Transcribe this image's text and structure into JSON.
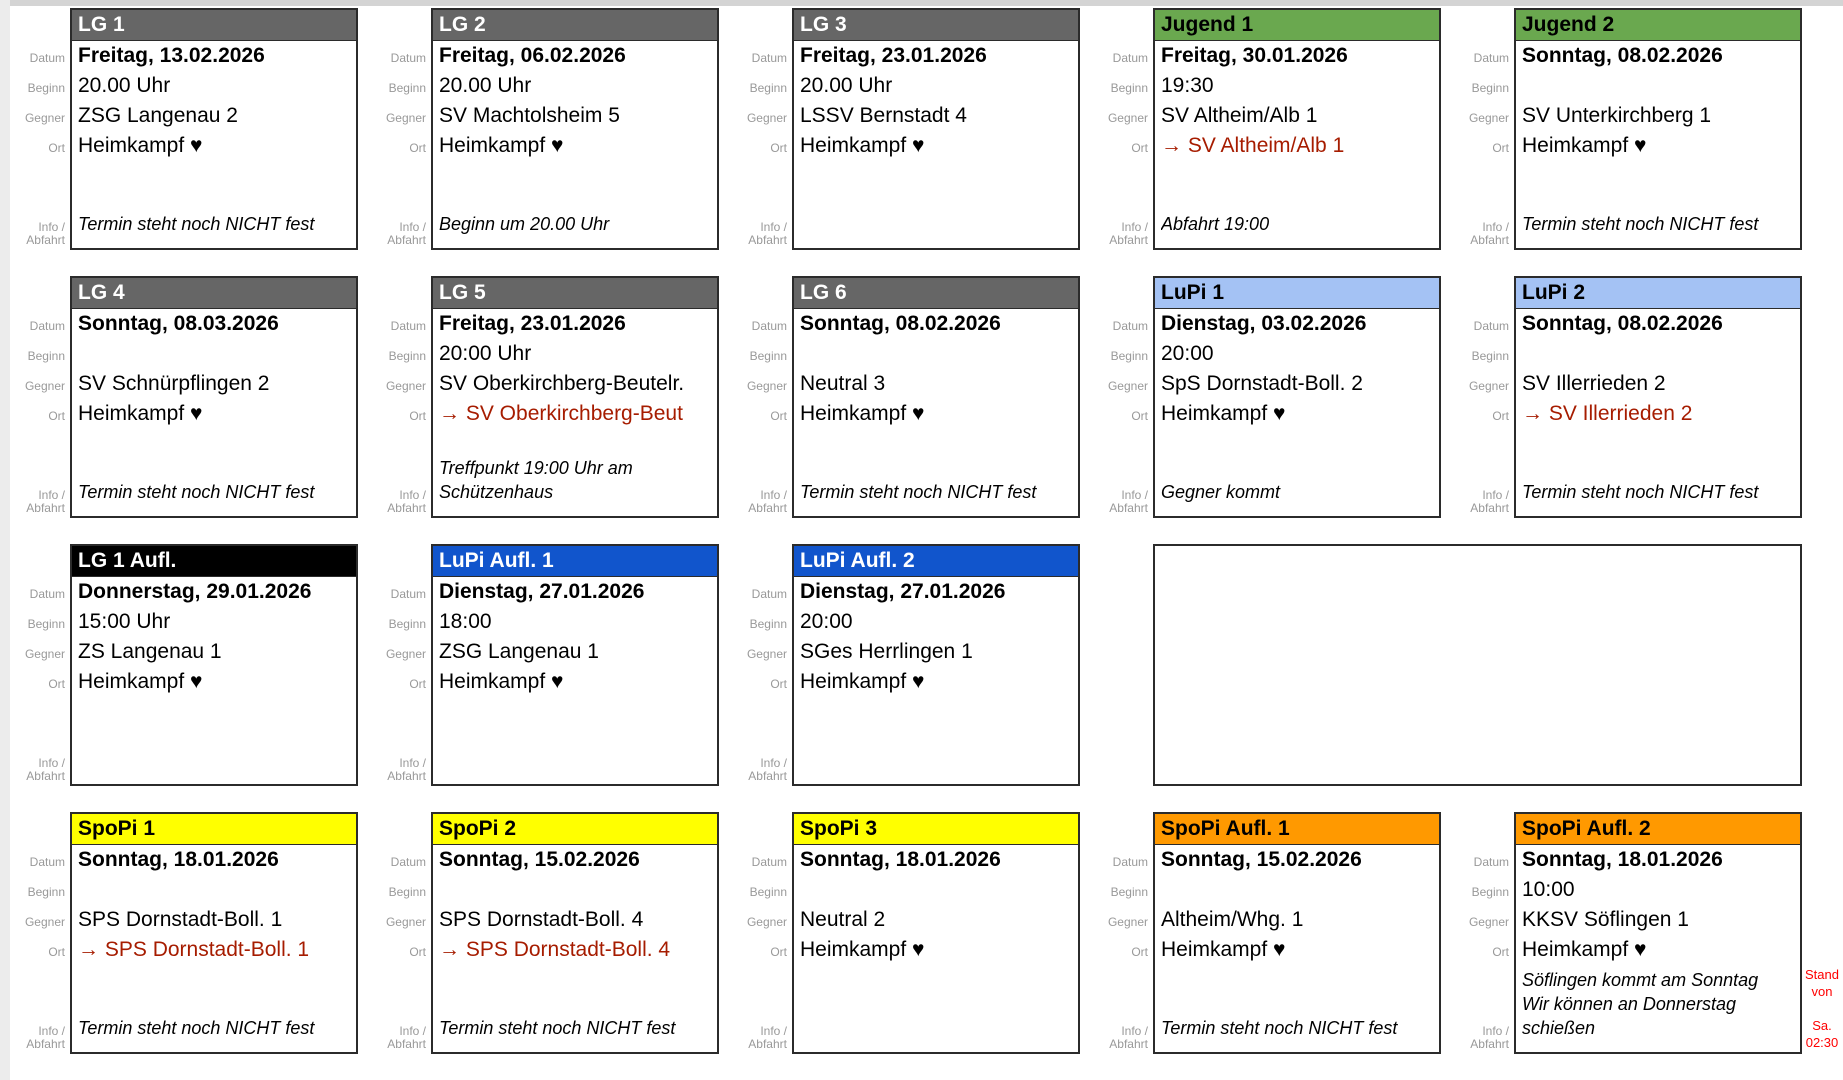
{
  "field_labels": {
    "datum": "Datum",
    "beginn": "Beginn",
    "gegner": "Gegner",
    "ort": "Ort",
    "info_line1": "Info /",
    "info_line2": "Abfahrt"
  },
  "side_note": {
    "text": "Stand\nvon\n\nSa.\n02:30",
    "color": "#ff0000"
  },
  "colors": {
    "away_match_red": "#a61c00",
    "card_border": "#2b2b2b",
    "label_gray": "#999999",
    "header_gray": "#666666",
    "header_green": "#6aa84f",
    "header_lightblue": "#a4c2f4",
    "header_black": "#000000",
    "header_blue": "#1155cc",
    "header_yellow": "#ffff00",
    "header_orange": "#ff9900"
  },
  "rows": [
    {
      "cards": [
        {
          "title": "LG 1",
          "header_bg": "#666666",
          "header_fg": "#ffffff",
          "datum": "Freitag, 13.02.2026",
          "beginn": "20.00 Uhr",
          "gegner": "ZSG Langenau 2",
          "ort": "Heimkampf ♥",
          "ort_red": false,
          "info": "Termin steht noch NICHT fest"
        },
        {
          "title": "LG 2",
          "header_bg": "#666666",
          "header_fg": "#ffffff",
          "datum": "Freitag, 06.02.2026",
          "beginn": "20.00 Uhr",
          "gegner": "SV Machtolsheim 5",
          "ort": "Heimkampf ♥",
          "ort_red": false,
          "info": "Beginn um 20.00 Uhr"
        },
        {
          "title": "LG 3",
          "header_bg": "#666666",
          "header_fg": "#ffffff",
          "datum": "Freitag, 23.01.2026",
          "beginn": "20.00 Uhr",
          "gegner": "LSSV Bernstadt 4",
          "ort": "Heimkampf ♥",
          "ort_red": false,
          "info": ""
        },
        {
          "title": "Jugend 1",
          "header_bg": "#6aa84f",
          "header_fg": "#000000",
          "datum": "Freitag, 30.01.2026",
          "beginn": "19:30",
          "gegner": "SV Altheim/Alb 1",
          "ort": "→ SV Altheim/Alb 1",
          "ort_red": true,
          "info": "Abfahrt 19:00"
        },
        {
          "title": "Jugend 2",
          "header_bg": "#6aa84f",
          "header_fg": "#000000",
          "datum": "Sonntag, 08.02.2026",
          "beginn": "",
          "gegner": "SV Unterkirchberg 1",
          "ort": "Heimkampf ♥",
          "ort_red": false,
          "info": "Termin steht noch NICHT fest"
        }
      ]
    },
    {
      "cards": [
        {
          "title": "LG 4",
          "header_bg": "#666666",
          "header_fg": "#ffffff",
          "datum": "Sonntag, 08.03.2026",
          "beginn": "",
          "gegner": "SV Schnürpflingen 2",
          "ort": "Heimkampf ♥",
          "ort_red": false,
          "info": "Termin steht noch NICHT fest"
        },
        {
          "title": "LG 5",
          "header_bg": "#666666",
          "header_fg": "#ffffff",
          "datum": "Freitag, 23.01.2026",
          "beginn": "20:00 Uhr",
          "gegner": "SV Oberkirchberg-Beutelr.",
          "ort": "→ SV Oberkirchberg-Beut",
          "ort_red": true,
          "info": "Treffpunkt 19:00 Uhr am\nSchützenhaus"
        },
        {
          "title": "LG 6",
          "header_bg": "#666666",
          "header_fg": "#ffffff",
          "datum": "Sonntag, 08.02.2026",
          "beginn": "",
          "gegner": "Neutral 3",
          "ort": "Heimkampf ♥",
          "ort_red": false,
          "info": "Termin steht noch NICHT fest"
        },
        {
          "title": "LuPi 1",
          "header_bg": "#a4c2f4",
          "header_fg": "#000000",
          "datum": "Dienstag, 03.02.2026",
          "beginn": "20:00",
          "gegner": "SpS Dornstadt-Boll. 2",
          "ort": "Heimkampf ♥",
          "ort_red": false,
          "info": "Gegner kommt"
        },
        {
          "title": "LuPi 2",
          "header_bg": "#a4c2f4",
          "header_fg": "#000000",
          "datum": "Sonntag, 08.02.2026",
          "beginn": "",
          "gegner": "SV Illerrieden 2",
          "ort": "→ SV Illerrieden 2",
          "ort_red": true,
          "info": "Termin steht noch NICHT fest"
        }
      ]
    },
    {
      "cards": [
        {
          "title": "LG 1 Aufl.",
          "header_bg": "#000000",
          "header_fg": "#ffffff",
          "datum": "Donnerstag, 29.01.2026",
          "beginn": "15:00 Uhr",
          "gegner": "ZS Langenau 1",
          "ort": "Heimkampf ♥",
          "ort_red": false,
          "info": ""
        },
        {
          "title": "LuPi Aufl. 1",
          "header_bg": "#1155cc",
          "header_fg": "#ffffff",
          "datum": "Dienstag, 27.01.2026",
          "beginn": "18:00",
          "gegner": "ZSG Langenau 1",
          "ort": "Heimkampf ♥",
          "ort_red": false,
          "info": ""
        },
        {
          "title": "LuPi Aufl. 2",
          "header_bg": "#1155cc",
          "header_fg": "#ffffff",
          "datum": "Dienstag, 27.01.2026",
          "beginn": "20:00",
          "gegner": "SGes Herrlingen 1",
          "ort": "Heimkampf ♥",
          "ort_red": false,
          "info": ""
        },
        {
          "empty": true
        }
      ]
    },
    {
      "cards": [
        {
          "title": "SpoPi 1",
          "header_bg": "#ffff00",
          "header_fg": "#000000",
          "datum": "Sonntag, 18.01.2026",
          "beginn": "",
          "gegner": "SPS Dornstadt-Boll. 1",
          "ort": "→ SPS Dornstadt-Boll. 1",
          "ort_red": true,
          "info": "Termin steht noch NICHT fest"
        },
        {
          "title": "SpoPi 2",
          "header_bg": "#ffff00",
          "header_fg": "#000000",
          "datum": "Sonntag, 15.02.2026",
          "beginn": "",
          "gegner": "SPS Dornstadt-Boll. 4",
          "ort": "→ SPS Dornstadt-Boll. 4",
          "ort_red": true,
          "info": "Termin steht noch NICHT fest"
        },
        {
          "title": "SpoPi 3",
          "header_bg": "#ffff00",
          "header_fg": "#000000",
          "datum": "Sonntag, 18.01.2026",
          "beginn": "",
          "gegner": "Neutral 2",
          "ort": "Heimkampf ♥",
          "ort_red": false,
          "info": ""
        },
        {
          "title": "SpoPi Aufl. 1",
          "header_bg": "#ff9900",
          "header_fg": "#000000",
          "datum": "Sonntag, 15.02.2026",
          "beginn": "",
          "gegner": "Altheim/Whg. 1",
          "ort": "Heimkampf ♥",
          "ort_red": false,
          "info": "Termin steht noch NICHT fest"
        },
        {
          "title": "SpoPi Aufl. 2",
          "header_bg": "#ff9900",
          "header_fg": "#000000",
          "datum": "Sonntag, 18.01.2026",
          "beginn": "10:00",
          "gegner": "KKSV Söflingen 1",
          "ort": "Heimkampf ♥",
          "ort_red": false,
          "info": "Söflingen kommt am Sonntag\nWir können an Donnerstag\nschießen"
        }
      ]
    }
  ]
}
